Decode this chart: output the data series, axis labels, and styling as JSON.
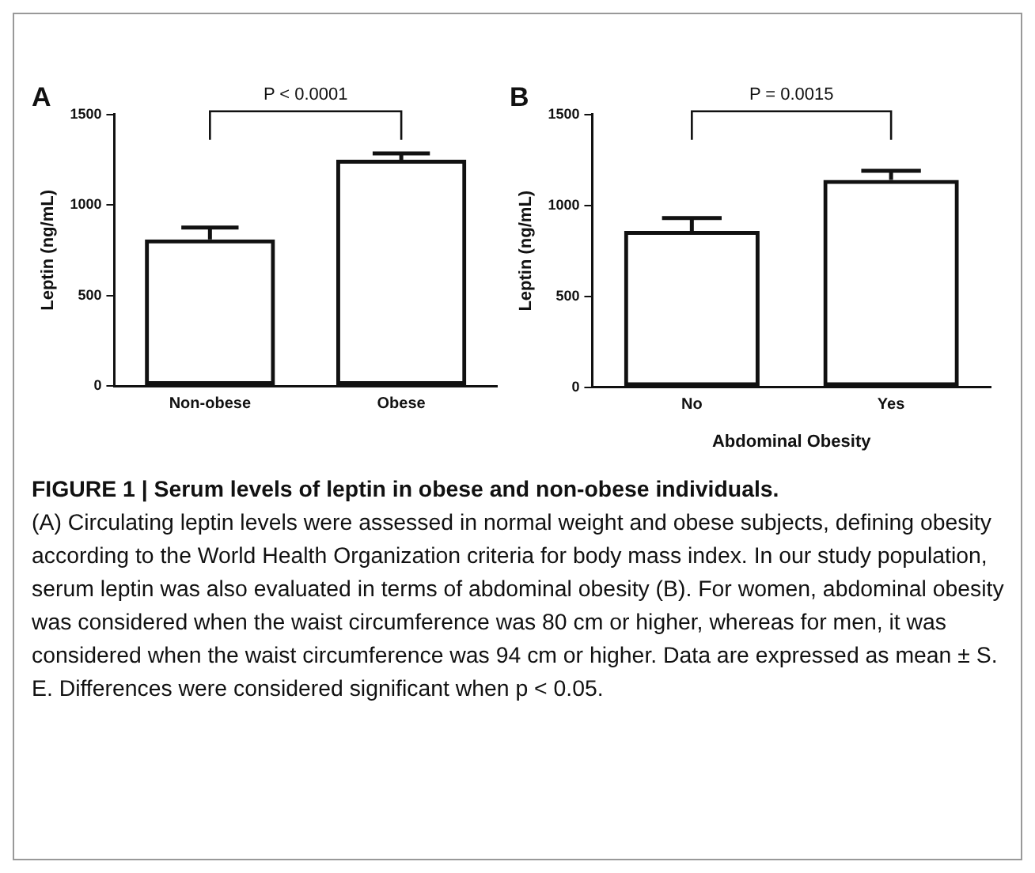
{
  "chart_data": [
    {
      "type": "bar",
      "title": "A",
      "ylabel": "Leptin (ng/mL)",
      "categories": [
        "Non-obese",
        "Obese"
      ],
      "values": [
        810,
        1250
      ],
      "errors": [
        65,
        35
      ],
      "color": "#111111",
      "ylim": [
        0,
        1500
      ],
      "yticks": [
        0,
        500,
        1000,
        1500
      ],
      "grid": false,
      "legend": false,
      "annotations": [
        "P < 0.0001"
      ]
    },
    {
      "type": "bar",
      "title": "B",
      "ylabel": "Leptin (ng/mL)",
      "xlabel": "Abdominal Obesity",
      "categories": [
        "No",
        "Yes"
      ],
      "values": [
        860,
        1140
      ],
      "errors": [
        70,
        50
      ],
      "color": "#111111",
      "ylim": [
        0,
        1500
      ],
      "yticks": [
        0,
        500,
        1000,
        1500
      ],
      "grid": false,
      "legend": false,
      "annotations": [
        "P = 0.0015"
      ]
    },
    {
      "type": "other",
      "title": "FIGURE 1 | Serum levels of leptin in obese and non-obese individuals.",
      "annotations": [
        "(A) Circulating leptin levels were assessed in normal weight and obese subjects, defining obesity according to the World Health Organization criteria for body mass index. In our study population, serum leptin was also evaluated in terms of abdominal obesity (B). For women, abdominal obesity was considered when the waist circumference was 80 cm or higher, whereas for men, it was considered when the waist circumference was 94 cm or higher. Data are expressed as mean ± S. E. Differences were considered significant when p < 0.05."
      ]
    }
  ]
}
